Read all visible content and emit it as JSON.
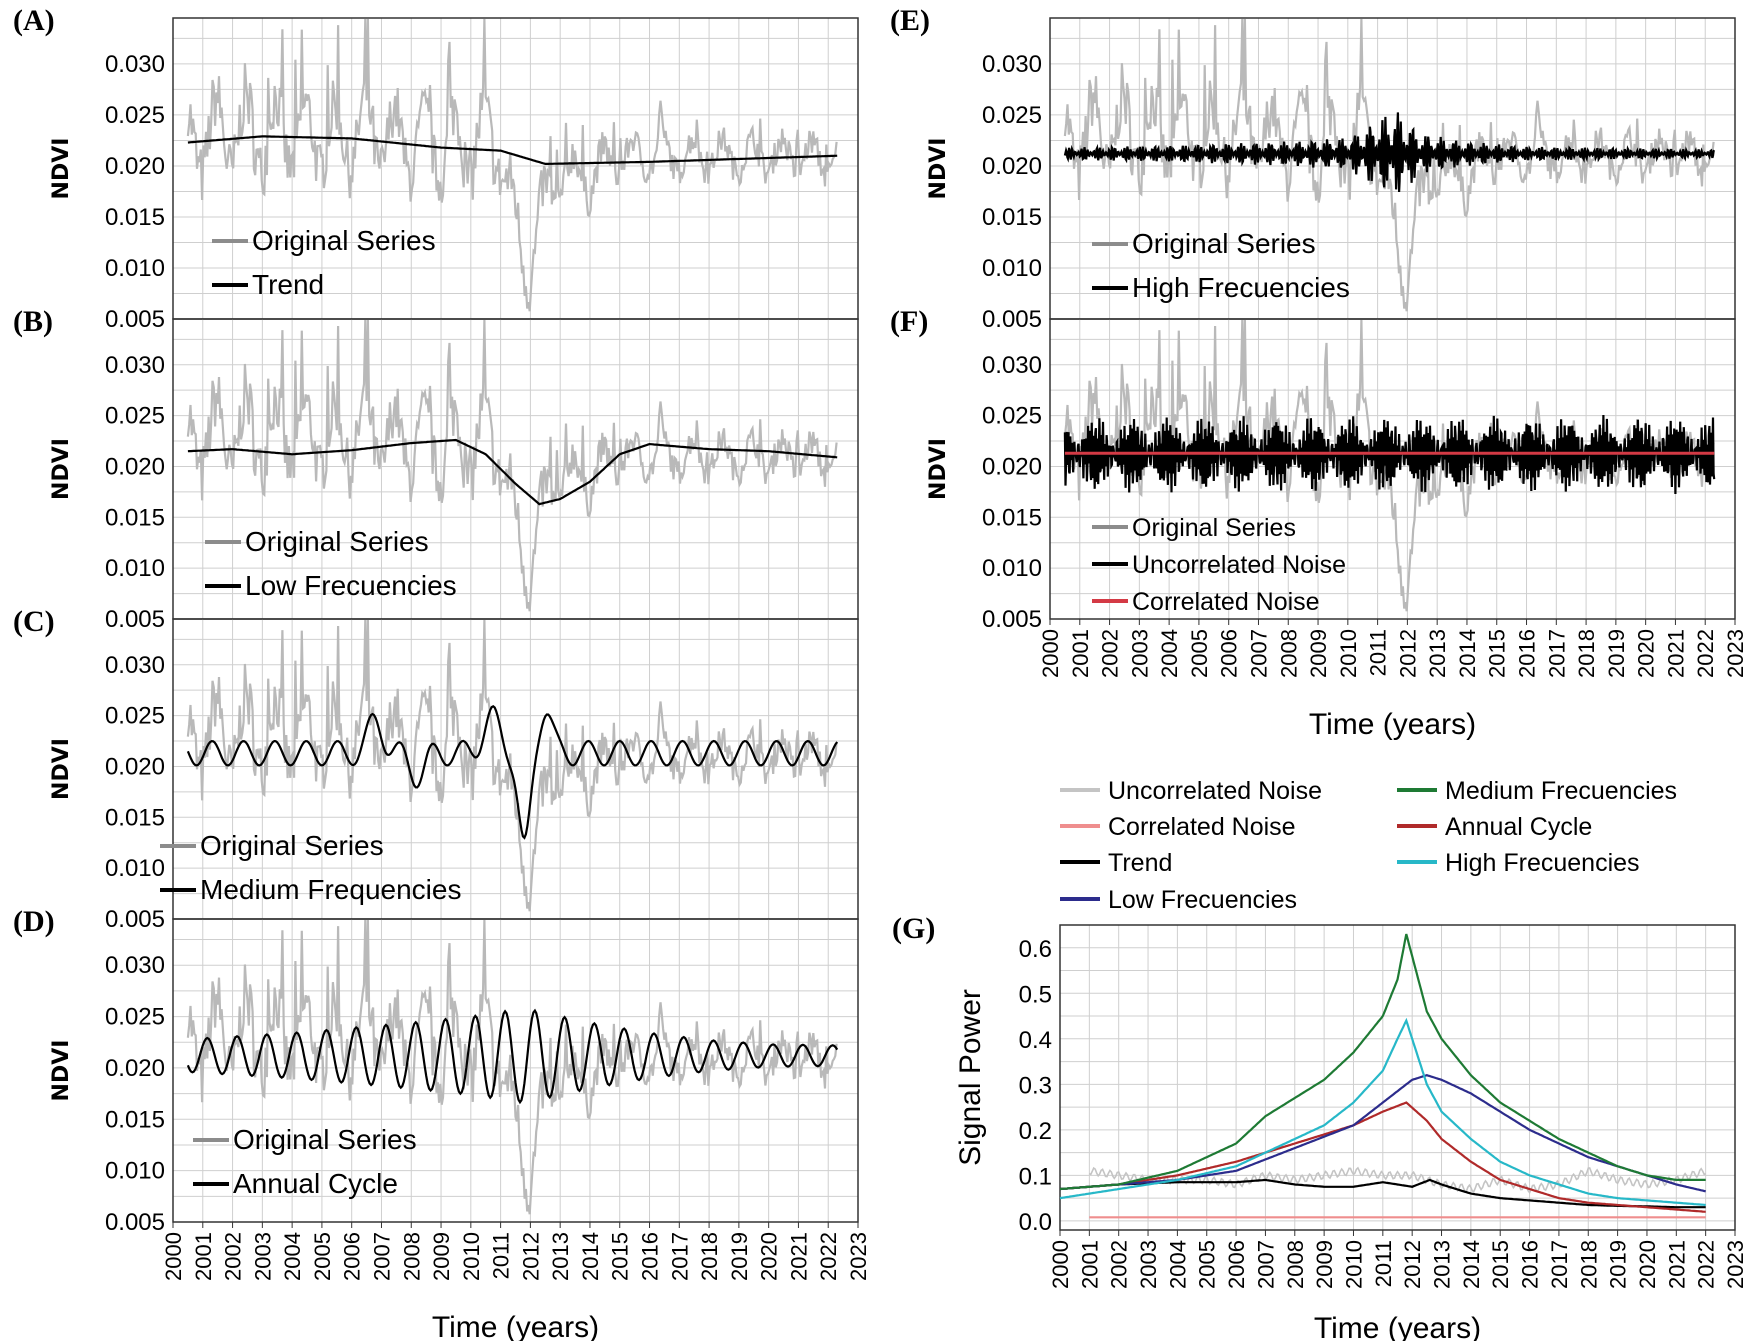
{
  "figure": {
    "chart_data": [
      {
        "id": "A",
        "panel_label": "(A)",
        "type": "line",
        "ylabel": "NDVI",
        "yticks": [
          "0.005",
          "0.010",
          "0.015",
          "0.020",
          "0.025",
          "0.030"
        ],
        "series": [
          {
            "name": "Original Series",
            "color": "#b9b9b9",
            "legend_color": "#8c8c8c"
          },
          {
            "name": "Trend",
            "color": "#000000",
            "kind": "trend"
          }
        ],
        "legend": [
          "Original Series",
          "Trend"
        ],
        "ylim": [
          0.005,
          0.0345
        ],
        "xlim": [
          2000,
          2023
        ]
      },
      {
        "id": "B",
        "panel_label": "(B)",
        "type": "line",
        "ylabel": "NDVI",
        "yticks": [
          "0.005",
          "0.010",
          "0.015",
          "0.020",
          "0.025",
          "0.030"
        ],
        "series": [
          {
            "name": "Original Series",
            "color": "#b9b9b9",
            "legend_color": "#8c8c8c"
          },
          {
            "name": "Low Frecuencies",
            "color": "#000000",
            "kind": "low"
          }
        ],
        "legend": [
          "Original Series",
          "Low Frecuencies"
        ],
        "ylim": [
          0.005,
          0.0345
        ],
        "xlim": [
          2000,
          2023
        ]
      },
      {
        "id": "C",
        "panel_label": "(C)",
        "type": "line",
        "ylabel": "NDVI",
        "yticks": [
          "0.005",
          "0.010",
          "0.015",
          "0.020",
          "0.025",
          "0.030"
        ],
        "series": [
          {
            "name": "Original Series",
            "color": "#b9b9b9",
            "legend_color": "#8c8c8c"
          },
          {
            "name": "Medium Frequencies",
            "color": "#000000",
            "kind": "medium"
          }
        ],
        "legend": [
          "Original Series",
          "Medium Frequencies"
        ],
        "ylim": [
          0.005,
          0.0345
        ],
        "xlim": [
          2000,
          2023
        ]
      },
      {
        "id": "D",
        "panel_label": "(D)",
        "type": "line",
        "ylabel": "NDVI",
        "yticks": [
          "0.005",
          "0.010",
          "0.015",
          "0.020",
          "0.025",
          "0.030"
        ],
        "series": [
          {
            "name": "Original Series",
            "color": "#b9b9b9",
            "legend_color": "#8c8c8c"
          },
          {
            "name": "Annual Cycle",
            "color": "#000000",
            "kind": "annual"
          }
        ],
        "legend": [
          "Original Series",
          "Annual Cycle"
        ],
        "ylim": [
          0.005,
          0.0345
        ],
        "xlim": [
          2000,
          2023
        ],
        "xlabel": "Time (years)"
      },
      {
        "id": "E",
        "panel_label": "(E)",
        "type": "line",
        "ylabel": "NDVI",
        "yticks": [
          "0.005",
          "0.010",
          "0.015",
          "0.020",
          "0.025",
          "0.030"
        ],
        "series": [
          {
            "name": "Original Series",
            "color": "#b9b9b9",
            "legend_color": "#8c8c8c"
          },
          {
            "name": "High Frecuencies",
            "color": "#000000",
            "kind": "high"
          }
        ],
        "legend": [
          "Original Series",
          "High Frecuencies"
        ],
        "ylim": [
          0.005,
          0.0345
        ],
        "xlim": [
          2000,
          2023
        ]
      },
      {
        "id": "F",
        "panel_label": "(F)",
        "type": "line",
        "ylabel": "NDVI",
        "yticks": [
          "0.005",
          "0.010",
          "0.015",
          "0.020",
          "0.025",
          "0.030"
        ],
        "series": [
          {
            "name": "Original Series",
            "color": "#b9b9b9",
            "legend_color": "#8c8c8c"
          },
          {
            "name": "Uncorrelated Noise",
            "color": "#000000",
            "kind": "noise"
          },
          {
            "name": "Correlated Noise",
            "color": "#d43a45",
            "kind": "flat"
          }
        ],
        "legend": [
          "Original Series",
          "Uncorrelated Noise",
          "Correlated Noise"
        ],
        "ylim": [
          0.005,
          0.0345
        ],
        "xlim": [
          2000,
          2023
        ],
        "xlabel": "Time (years)"
      },
      {
        "id": "G",
        "panel_label": "(G)",
        "type": "line",
        "ylabel": "Signal Power",
        "xlabel": "Time (years)",
        "yticks": [
          "0.0",
          "0.1",
          "0.2",
          "0.3",
          "0.4",
          "0.5",
          "0.6"
        ],
        "ylim": [
          -0.02,
          0.65
        ],
        "xlim": [
          2000,
          2023
        ],
        "legend": [
          {
            "name": "Uncorrelated Noise",
            "color": "#c4c4c4"
          },
          {
            "name": "Medium Frecuencies",
            "color": "#1e7a34"
          },
          {
            "name": "Correlated Noise",
            "color": "#ef8e8e"
          },
          {
            "name": "Annual Cycle",
            "color": "#b02a2a"
          },
          {
            "name": "Trend",
            "color": "#000000"
          },
          {
            "name": "High Frecuencies",
            "color": "#27b8c8"
          },
          {
            "name": "Low Frecuencies",
            "color": "#2c2c8c"
          }
        ],
        "series": [
          {
            "name": "Medium Frecuencies",
            "color": "#1e7a34",
            "x": [
              2000,
              2002,
              2004,
              2006,
              2007,
              2008,
              2009,
              2010,
              2011,
              2011.5,
              2011.8,
              2012.5,
              2013,
              2014,
              2015,
              2016,
              2017,
              2018,
              2019,
              2020,
              2021,
              2022
            ],
            "values": [
              0.07,
              0.08,
              0.11,
              0.17,
              0.23,
              0.27,
              0.31,
              0.37,
              0.45,
              0.53,
              0.63,
              0.46,
              0.4,
              0.32,
              0.26,
              0.22,
              0.18,
              0.15,
              0.12,
              0.1,
              0.09,
              0.09
            ]
          },
          {
            "name": "High Frecuencies",
            "color": "#27b8c8",
            "x": [
              2000,
              2002,
              2004,
              2006,
              2007,
              2008,
              2009,
              2010,
              2011,
              2011.5,
              2011.8,
              2012.5,
              2013,
              2014,
              2015,
              2016,
              2017,
              2018,
              2019,
              2020,
              2021,
              2022
            ],
            "values": [
              0.05,
              0.07,
              0.09,
              0.12,
              0.15,
              0.18,
              0.21,
              0.26,
              0.33,
              0.4,
              0.44,
              0.3,
              0.24,
              0.18,
              0.13,
              0.1,
              0.08,
              0.06,
              0.05,
              0.045,
              0.04,
              0.035
            ]
          },
          {
            "name": "Low Frecuencies",
            "color": "#2c2c8c",
            "x": [
              2000,
              2002,
              2004,
              2006,
              2008,
              2010,
              2011,
              2012,
              2012.5,
              2013,
              2014,
              2015,
              2016,
              2017,
              2018,
              2019,
              2020,
              2021,
              2022
            ],
            "values": [
              0.07,
              0.08,
              0.09,
              0.11,
              0.16,
              0.21,
              0.26,
              0.31,
              0.32,
              0.31,
              0.28,
              0.24,
              0.2,
              0.17,
              0.14,
              0.12,
              0.1,
              0.08,
              0.065
            ]
          },
          {
            "name": "Annual Cycle",
            "color": "#b02a2a",
            "x": [
              2000,
              2002,
              2004,
              2006,
              2008,
              2010,
              2011,
              2011.8,
              2012.5,
              2013,
              2014,
              2015,
              2016,
              2017,
              2018,
              2019,
              2020,
              2021,
              2022
            ],
            "values": [
              0.07,
              0.08,
              0.1,
              0.13,
              0.17,
              0.21,
              0.24,
              0.26,
              0.22,
              0.18,
              0.13,
              0.09,
              0.07,
              0.05,
              0.04,
              0.035,
              0.03,
              0.025,
              0.02
            ]
          },
          {
            "name": "Trend",
            "color": "#000000",
            "x": [
              2000,
              2002,
              2004,
              2006,
              2007,
              2008,
              2009,
              2010,
              2011,
              2011.5,
              2012,
              2012.6,
              2013,
              2014,
              2015,
              2016,
              2017,
              2018,
              2019,
              2020,
              2021,
              2022
            ],
            "values": [
              0.07,
              0.08,
              0.085,
              0.085,
              0.09,
              0.08,
              0.075,
              0.075,
              0.085,
              0.08,
              0.075,
              0.09,
              0.08,
              0.06,
              0.05,
              0.045,
              0.04,
              0.035,
              0.033,
              0.032,
              0.03,
              0.03
            ]
          },
          {
            "name": "Uncorrelated Noise",
            "color": "#c4c4c4",
            "x": [
              2001,
              2002,
              2003,
              2004,
              2005,
              2006,
              2007,
              2008,
              2009,
              2010,
              2011,
              2012,
              2013,
              2014,
              2015,
              2016,
              2017,
              2018,
              2019,
              2020,
              2021,
              2022
            ],
            "values": [
              0.11,
              0.1,
              0.09,
              0.09,
              0.09,
              0.08,
              0.1,
              0.09,
              0.1,
              0.11,
              0.1,
              0.1,
              0.08,
              0.07,
              0.09,
              0.07,
              0.08,
              0.11,
              0.09,
              0.08,
              0.09,
              0.11
            ]
          },
          {
            "name": "Correlated Noise",
            "color": "#ef8e8e",
            "x": [
              2001,
              2022
            ],
            "values": [
              0.008,
              0.008
            ]
          }
        ]
      }
    ],
    "x_tick_labels": [
      "2000",
      "2001",
      "2002",
      "2003",
      "2004",
      "2005",
      "2006",
      "2007",
      "2008",
      "2009",
      "2010",
      "2011",
      "2012",
      "2013",
      "2014",
      "2015",
      "2016",
      "2017",
      "2018",
      "2019",
      "2020",
      "2021",
      "2022",
      "2023"
    ],
    "original_series_anchor": {
      "x": [
        2000.5,
        2001,
        2002,
        2003,
        2004,
        2005,
        2006,
        2006.7,
        2007,
        2008,
        2009,
        2010,
        2011,
        2011.6,
        2012,
        2012.5,
        2013,
        2014,
        2015,
        2016,
        2017,
        2018,
        2019,
        2020,
        2021,
        2022.3
      ],
      "mean": [
        0.0225,
        0.0228,
        0.0232,
        0.0232,
        0.023,
        0.0228,
        0.0228,
        0.0235,
        0.0228,
        0.0222,
        0.0218,
        0.0225,
        0.022,
        0.012,
        0.011,
        0.016,
        0.019,
        0.019,
        0.021,
        0.021,
        0.021,
        0.021,
        0.021,
        0.021,
        0.021,
        0.0205
      ],
      "amplitude": [
        0.006,
        0.007,
        0.007,
        0.007,
        0.006,
        0.006,
        0.006,
        0.007,
        0.006,
        0.006,
        0.006,
        0.007,
        0.006,
        0.006,
        0.006,
        0.005,
        0.004,
        0.004,
        0.003,
        0.003,
        0.003,
        0.003,
        0.003,
        0.003,
        0.003,
        0.003
      ]
    }
  }
}
